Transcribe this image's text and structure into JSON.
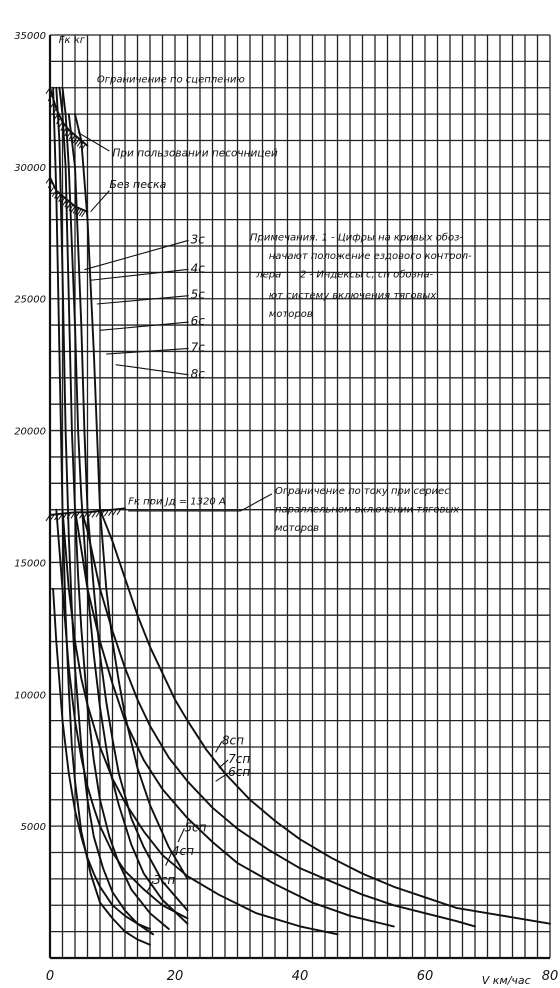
{
  "chart_data": {
    "type": "line",
    "title": "",
    "xlabel": "V км/час",
    "ylabel": "Fк кг",
    "xlim": [
      0,
      80
    ],
    "ylim": [
      0,
      35000
    ],
    "x_ticks": [
      "0",
      "20",
      "40",
      "60",
      "80"
    ],
    "y_ticks": [
      "5000",
      "10000",
      "15000",
      "20000",
      "25000",
      "30000",
      "35000"
    ],
    "grid": true,
    "limits": [
      {
        "label": "Ограничение по сцеплению",
        "kind": "adhesion"
      },
      {
        "label": "При пользовании песочницей",
        "kind": "adhesion-sand",
        "x": [
          0,
          1,
          2,
          3,
          4,
          5,
          6
        ],
        "y": [
          33000,
          32200,
          31700,
          31400,
          31200,
          31000,
          30800
        ]
      },
      {
        "label": "Без песка",
        "kind": "adhesion-nosand",
        "x": [
          0,
          1,
          2,
          3,
          4,
          5,
          6
        ],
        "y": [
          29600,
          29100,
          28900,
          28700,
          28500,
          28400,
          28300
        ]
      },
      {
        "label": "Ограничение по току при сериес параллельном включении тяговых моторов",
        "kind": "current",
        "x": [
          0,
          2,
          4,
          6,
          8,
          10,
          12
        ],
        "y": [
          16800,
          16850,
          16900,
          16900,
          16950,
          17000,
          17050
        ]
      }
    ],
    "current_label": "Fк при Jд = 1320 А",
    "notes": {
      "title": "Примечания.",
      "note1": "1 - Цифры на кривых обозначают положение ездового контроллера",
      "note2": "2 - Индексы с, сп обозначают систему включения тяговых моторов"
    },
    "series": [
      {
        "name": "3с",
        "x": [
          0.5,
          1,
          1.5,
          2,
          2.5,
          3,
          3.5,
          4,
          5,
          6.5,
          8,
          10,
          12,
          14,
          16
        ],
        "y": [
          33000,
          29000,
          23000,
          17000,
          13000,
          10200,
          8000,
          6700,
          4800,
          3200,
          2100,
          1500,
          1000,
          700,
          500
        ]
      },
      {
        "name": "4с",
        "x": [
          1,
          1.5,
          2,
          2.5,
          3,
          3.5,
          4,
          5,
          6,
          7,
          8.5,
          10,
          12,
          14,
          16.5
        ],
        "y": [
          33000,
          31000,
          26000,
          20000,
          16000,
          13200,
          11000,
          8000,
          6000,
          4600,
          3400,
          2500,
          1800,
          1300,
          900
        ]
      },
      {
        "name": "5с",
        "x": [
          1.5,
          2,
          2.5,
          3,
          3.5,
          4,
          4.5,
          5,
          6,
          7,
          8,
          9.5,
          11,
          13,
          16,
          19
        ],
        "y": [
          33000,
          32000,
          30000,
          25000,
          20000,
          17000,
          14500,
          12500,
          9500,
          7500,
          6000,
          4600,
          3600,
          2600,
          1700,
          1100
        ]
      },
      {
        "name": "6с",
        "x": [
          2,
          2.5,
          3,
          4,
          4.5,
          5,
          6,
          7,
          8,
          9.5,
          11,
          13,
          15,
          18,
          22
        ],
        "y": [
          33000,
          32000,
          30000,
          24000,
          20000,
          17500,
          14000,
          11500,
          9500,
          7200,
          5800,
          4300,
          3200,
          2200,
          1300
        ]
      },
      {
        "name": "7с",
        "x": [
          3,
          4,
          5,
          5.5,
          6,
          7,
          8,
          9,
          10,
          11,
          13,
          15,
          18,
          22
        ],
        "y": [
          32000,
          30000,
          24000,
          20000,
          17000,
          14000,
          11500,
          9700,
          8300,
          7000,
          5300,
          4200,
          2900,
          1800
        ]
      },
      {
        "name": "8с",
        "x": [
          4,
          5,
          6,
          7,
          7.5,
          8,
          9,
          10,
          11,
          12,
          14,
          16,
          19,
          22
        ],
        "y": [
          32000,
          31000,
          28000,
          23000,
          20000,
          17000,
          14000,
          12000,
          10500,
          9200,
          7200,
          5800,
          4200,
          3000
        ]
      },
      {
        "name": "3сп",
        "x": [
          0.5,
          1,
          2,
          3,
          4,
          5,
          6,
          7,
          8,
          10,
          12,
          14,
          16
        ],
        "y": [
          14000,
          12000,
          9000,
          7000,
          5600,
          4600,
          3800,
          3200,
          2700,
          2000,
          1600,
          1300,
          1100
        ]
      },
      {
        "name": "4сп",
        "x": [
          1,
          2,
          3,
          4,
          5,
          6,
          7,
          8,
          10,
          12,
          15,
          18,
          22
        ],
        "y": [
          17000,
          14000,
          11000,
          9000,
          7600,
          6500,
          5700,
          5000,
          4000,
          3300,
          2600,
          2000,
          1500
        ]
      },
      {
        "name": "5сп",
        "x": [
          2,
          3,
          4,
          5,
          6,
          7,
          8,
          10,
          12,
          15,
          18,
          22,
          27,
          33,
          40,
          46
        ],
        "y": [
          17000,
          14000,
          12000,
          10600,
          9600,
          8800,
          8000,
          6800,
          5900,
          4800,
          3900,
          3100,
          2400,
          1700,
          1200,
          900
        ]
      },
      {
        "name": "6сп",
        "x": [
          4,
          5,
          6,
          7,
          8,
          10,
          12,
          15,
          18,
          22,
          26,
          30,
          36,
          42,
          48,
          55
        ],
        "y": [
          17000,
          15500,
          14000,
          13000,
          12000,
          10400,
          9000,
          7500,
          6400,
          5300,
          4400,
          3600,
          2800,
          2100,
          1600,
          1200
        ]
      },
      {
        "name": "7сп",
        "x": [
          5,
          6,
          8,
          10,
          12,
          14,
          16,
          19,
          22,
          26,
          30,
          35,
          40,
          45,
          50,
          55,
          60,
          65,
          68
        ],
        "y": [
          17000,
          16200,
          14000,
          12400,
          11000,
          9800,
          8800,
          7600,
          6700,
          5700,
          4900,
          4100,
          3400,
          2900,
          2400,
          2000,
          1700,
          1400,
          1200
        ]
      },
      {
        "name": "8сп",
        "x": [
          8,
          10,
          12,
          14,
          16,
          18,
          20,
          22,
          25,
          28,
          32,
          36,
          40,
          45,
          50,
          55,
          60,
          65,
          70,
          75,
          80
        ],
        "y": [
          17000,
          15800,
          14400,
          13000,
          11800,
          10800,
          9800,
          9000,
          7900,
          7000,
          6000,
          5200,
          4500,
          3800,
          3200,
          2700,
          2300,
          1900,
          1700,
          1500,
          1300
        ]
      }
    ]
  }
}
